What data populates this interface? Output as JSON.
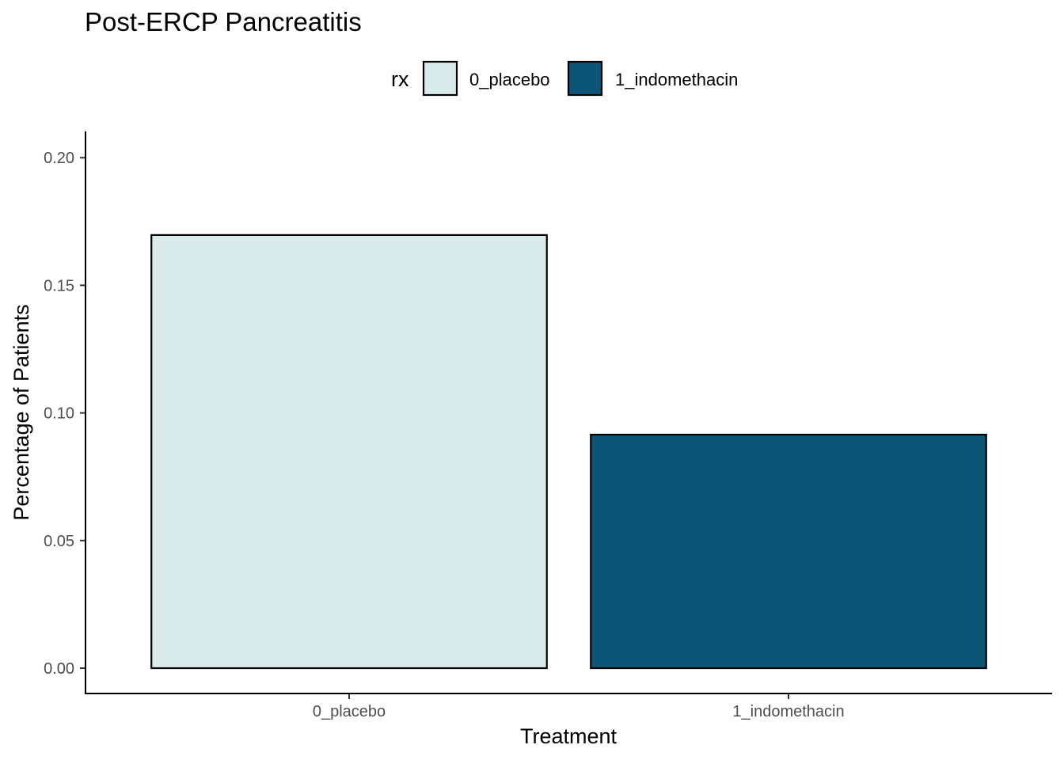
{
  "chart_data": {
    "type": "bar",
    "title": "Post-ERCP Pancreatitis",
    "xlabel": "Treatment",
    "ylabel": "Percentage of Patients",
    "categories": [
      "0_placebo",
      "1_indomethacin"
    ],
    "values": [
      0.1697,
      0.0915
    ],
    "ylim": [
      -0.01,
      0.21
    ],
    "yticks": [
      0.0,
      0.05,
      0.1,
      0.15,
      0.2
    ],
    "ytick_labels": [
      "0.00",
      "0.05",
      "0.10",
      "0.15",
      "0.20"
    ],
    "grid": false,
    "legend": {
      "title": "rx",
      "position": "top",
      "entries": [
        {
          "label": "0_placebo",
          "color": "#d9eaea"
        },
        {
          "label": "1_indomethacin",
          "color": "#0d5577"
        }
      ]
    },
    "bar_colors": [
      "#d9eaea",
      "#0d5577"
    ],
    "bar_outline_color": "#000000"
  }
}
